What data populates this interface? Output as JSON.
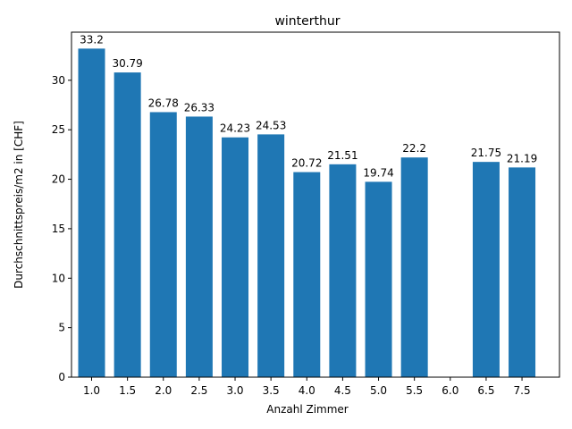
{
  "chart_data": {
    "type": "bar",
    "title": "winterthur",
    "xlabel": "Anzahl Zimmer",
    "ylabel": "Durchschnittspreis/m2 in [CHF]",
    "categories": [
      "1.0",
      "1.5",
      "2.0",
      "2.5",
      "3.0",
      "3.5",
      "4.0",
      "4.5",
      "5.0",
      "5.5",
      "6.0",
      "6.5",
      "7.5"
    ],
    "values": [
      33.2,
      30.79,
      26.78,
      26.33,
      24.23,
      24.53,
      20.72,
      21.51,
      19.74,
      22.2,
      null,
      21.75,
      21.19
    ],
    "value_labels": [
      "33.2",
      "30.79",
      "26.78",
      "26.33",
      "24.23",
      "24.53",
      "20.72",
      "21.51",
      "19.74",
      "22.2",
      "",
      "21.75",
      "21.19"
    ],
    "ylim": [
      0,
      34.86
    ],
    "yticks": [
      "0",
      "5",
      "10",
      "15",
      "20",
      "25",
      "30"
    ],
    "grid": false,
    "bar_color": "#1f77b4"
  }
}
